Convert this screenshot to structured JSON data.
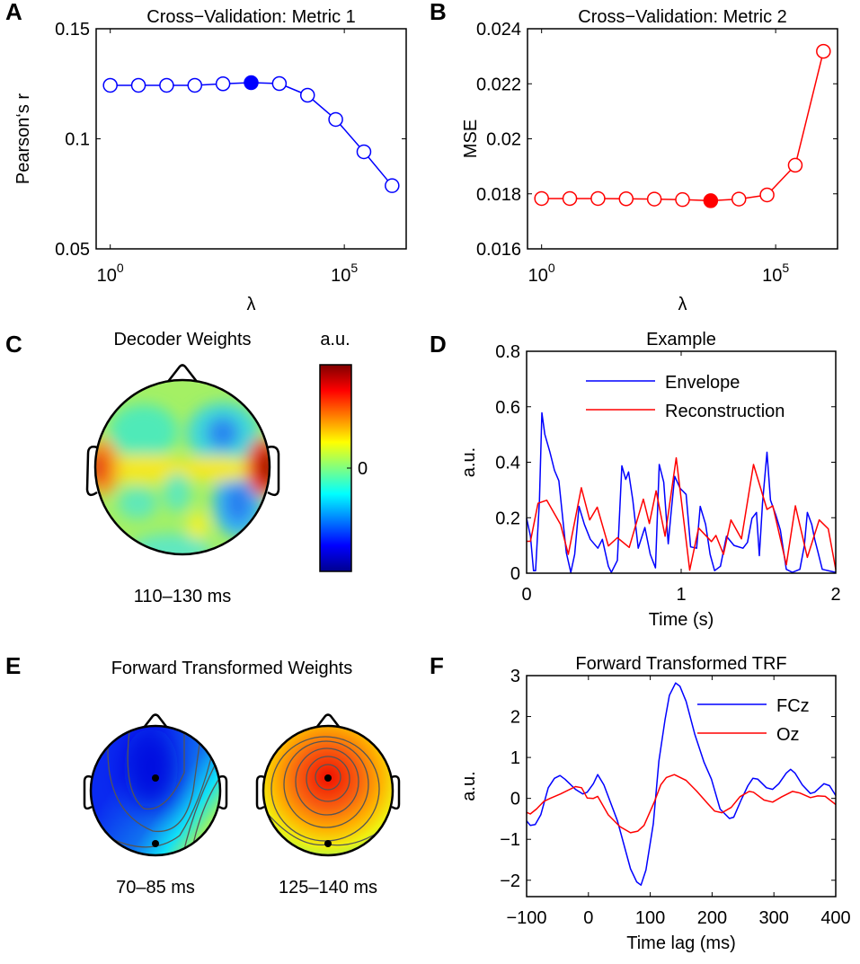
{
  "panels": {
    "A": {
      "letter": "A"
    },
    "B": {
      "letter": "B"
    },
    "C": {
      "letter": "C",
      "title": "Decoder Weights",
      "colorbar_label": "a.u.",
      "colorbar_tick": "0",
      "time_label": "110–130 ms",
      "colormap": "jet"
    },
    "D": {
      "letter": "D"
    },
    "E": {
      "letter": "E",
      "title": "Forward Transformed Weights",
      "time_labels": [
        "70–85 ms",
        "125–140 ms"
      ],
      "colormap": "jet"
    },
    "F": {
      "letter": "F"
    }
  },
  "chart_data": [
    {
      "id": "A",
      "type": "line",
      "title": "Cross−Validation: Metric 1",
      "xlabel": "λ",
      "ylabel": "Pearson‘s r",
      "xscale": "log",
      "xlim": [
        0.5,
        2097152
      ],
      "ylim": [
        0.05,
        0.15
      ],
      "xticks": [
        {
          "value": 1,
          "base": "10",
          "exp": "0"
        },
        {
          "value": 100000,
          "base": "10",
          "exp": "5"
        }
      ],
      "yticks": [
        {
          "value": 0.05,
          "label": "0.05"
        },
        {
          "value": 0.1,
          "label": "0.1"
        },
        {
          "value": 0.15,
          "label": "0.15"
        }
      ],
      "color": "#0000ff",
      "marker": "open-circle",
      "highlight_index": 5,
      "x": [
        1,
        4,
        16,
        64,
        256,
        1024,
        4096,
        16384,
        65536,
        262144,
        1048576
      ],
      "y": [
        0.1243,
        0.1243,
        0.1243,
        0.1243,
        0.125,
        0.1255,
        0.1251,
        0.1198,
        0.1088,
        0.0941,
        0.0787
      ],
      "grid": false
    },
    {
      "id": "B",
      "type": "line",
      "title": "Cross−Validation: Metric 2",
      "xlabel": "λ",
      "ylabel": "MSE",
      "xscale": "log",
      "xlim": [
        0.5,
        2097152
      ],
      "ylim": [
        0.016,
        0.024
      ],
      "xticks": [
        {
          "value": 1,
          "base": "10",
          "exp": "0"
        },
        {
          "value": 100000,
          "base": "10",
          "exp": "5"
        }
      ],
      "yticks": [
        {
          "value": 0.016,
          "label": "0.016"
        },
        {
          "value": 0.018,
          "label": "0.018"
        },
        {
          "value": 0.02,
          "label": "0.02"
        },
        {
          "value": 0.022,
          "label": "0.022"
        },
        {
          "value": 0.024,
          "label": "0.024"
        }
      ],
      "color": "#ff0000",
      "marker": "open-circle",
      "highlight_index": 6,
      "x": [
        1,
        4,
        16,
        64,
        256,
        1024,
        4096,
        16384,
        65536,
        262144,
        1048576
      ],
      "y": [
        0.01783,
        0.01783,
        0.01783,
        0.01782,
        0.01781,
        0.01779,
        0.01775,
        0.01781,
        0.01796,
        0.01904,
        0.02318
      ],
      "grid": false
    },
    {
      "id": "D",
      "type": "line",
      "title": "Example",
      "xlabel": "Time (s)",
      "ylabel": "a.u.",
      "xlim": [
        0,
        2
      ],
      "ylim": [
        0,
        0.8
      ],
      "xticks": [
        {
          "value": 0,
          "label": "0"
        },
        {
          "value": 1,
          "label": "1"
        },
        {
          "value": 2,
          "label": "2"
        }
      ],
      "yticks": [
        {
          "value": 0,
          "label": "0"
        },
        {
          "value": 0.2,
          "label": "0.2"
        },
        {
          "value": 0.4,
          "label": "0.4"
        },
        {
          "value": 0.6,
          "label": "0.6"
        },
        {
          "value": 0.8,
          "label": "0.8"
        }
      ],
      "legend": "top-right",
      "grid": false,
      "series": [
        {
          "name": "Envelope",
          "color": "#0000ff",
          "x": [
            0,
            0.025,
            0.045,
            0.058,
            0.083,
            0.099,
            0.118,
            0.151,
            0.18,
            0.209,
            0.238,
            0.257,
            0.286,
            0.311,
            0.339,
            0.374,
            0.412,
            0.461,
            0.49,
            0.529,
            0.548,
            0.587,
            0.616,
            0.641,
            0.66,
            0.687,
            0.722,
            0.765,
            0.8,
            0.834,
            0.858,
            0.887,
            0.916,
            0.935,
            0.958,
            0.993,
            1.032,
            1.061,
            1.1,
            1.123,
            1.158,
            1.187,
            1.216,
            1.254,
            1.293,
            1.342,
            1.4,
            1.429,
            1.458,
            1.487,
            1.506,
            1.526,
            1.555,
            1.578,
            1.613,
            1.642,
            1.68,
            1.719,
            1.768,
            1.797,
            1.816,
            1.845,
            1.864,
            1.884,
            1.913,
            2.0
          ],
          "y": [
            0.198,
            0.133,
            0.009,
            0.009,
            0.263,
            0.578,
            0.5,
            0.436,
            0.371,
            0.333,
            0.176,
            0.074,
            0.003,
            0.068,
            0.241,
            0.176,
            0.122,
            0.09,
            0.122,
            0.025,
            0.003,
            0.046,
            0.387,
            0.338,
            0.365,
            0.263,
            0.09,
            0.165,
            0.068,
            0.019,
            0.392,
            0.328,
            0.106,
            0.219,
            0.349,
            0.306,
            0.284,
            0.095,
            0.09,
            0.241,
            0.176,
            0.068,
            0.009,
            0.025,
            0.133,
            0.1,
            0.09,
            0.111,
            0.198,
            0.219,
            0.063,
            0.252,
            0.436,
            0.263,
            0.209,
            0.155,
            0.014,
            0.003,
            0.014,
            0.1,
            0.219,
            0.176,
            0.122,
            0.079,
            0.014,
            0.003
          ]
        },
        {
          "name": "Reconstruction",
          "color": "#ff0000",
          "x": [
            0,
            0.025,
            0.074,
            0.13,
            0.22,
            0.27,
            0.354,
            0.408,
            0.457,
            0.529,
            0.587,
            0.664,
            0.755,
            0.794,
            0.838,
            0.896,
            0.968,
            1.055,
            1.113,
            1.196,
            1.225,
            1.274,
            1.322,
            1.39,
            1.468,
            1.555,
            1.593,
            1.68,
            1.739,
            1.816,
            1.893,
            1.952,
            2.0
          ],
          "y": [
            0.115,
            0.115,
            0.252,
            0.263,
            0.176,
            0.068,
            0.308,
            0.192,
            0.238,
            0.098,
            0.128,
            0.093,
            0.267,
            0.179,
            0.297,
            0.133,
            0.416,
            0.011,
            0.163,
            0.114,
            0.136,
            0.068,
            0.192,
            0.124,
            0.392,
            0.23,
            0.243,
            0.03,
            0.243,
            0.057,
            0.192,
            0.16,
            0.014
          ]
        }
      ]
    },
    {
      "id": "F",
      "type": "line",
      "title": "Forward Transformed TRF",
      "xlabel": "Time lag (ms)",
      "ylabel": "a.u.",
      "xlim": [
        -100,
        400
      ],
      "ylim": [
        -2.4,
        3
      ],
      "xticks": [
        {
          "value": -100,
          "label": "−100"
        },
        {
          "value": 0,
          "label": "0"
        },
        {
          "value": 100,
          "label": "100"
        },
        {
          "value": 200,
          "label": "200"
        },
        {
          "value": 300,
          "label": "300"
        },
        {
          "value": 400,
          "label": "400"
        }
      ],
      "yticks": [
        {
          "value": -2,
          "label": "−2"
        },
        {
          "value": -1,
          "label": "−1"
        },
        {
          "value": 0,
          "label": "0"
        },
        {
          "value": 1,
          "label": "1"
        },
        {
          "value": 2,
          "label": "2"
        },
        {
          "value": 3,
          "label": "3"
        }
      ],
      "legend": "top-right",
      "grid": false,
      "series": [
        {
          "name": "FCz",
          "color": "#0000ff",
          "x": [
            -100,
            -94,
            -86,
            -77,
            -65,
            -55,
            -46,
            -38,
            -21,
            -9,
            -2,
            8,
            15,
            25,
            47,
            68,
            78,
            85,
            93,
            105,
            114,
            124,
            131,
            141,
            148,
            158,
            172,
            187,
            199,
            213,
            228,
            235,
            247,
            258,
            266,
            274,
            288,
            298,
            308,
            320,
            327,
            334,
            346,
            359,
            366,
            381,
            390,
            400
          ],
          "y": [
            -0.55,
            -0.66,
            -0.64,
            -0.4,
            0.26,
            0.49,
            0.56,
            0.47,
            0.22,
            0.11,
            0.15,
            0.36,
            0.58,
            0.33,
            -0.55,
            -1.72,
            -2.04,
            -2.12,
            -1.75,
            -0.62,
            0.91,
            1.93,
            2.52,
            2.82,
            2.74,
            2.37,
            1.57,
            0.88,
            0.47,
            -0.26,
            -0.49,
            -0.46,
            -0.04,
            0.31,
            0.49,
            0.47,
            0.26,
            0.22,
            0.36,
            0.62,
            0.71,
            0.62,
            0.33,
            0.12,
            0.15,
            0.36,
            0.31,
            0.07
          ]
        },
        {
          "name": "Oz",
          "color": "#ff0000",
          "x": [
            -100,
            -94,
            -84,
            -72,
            -62,
            -45,
            -21,
            -11,
            -2,
            8,
            15,
            32,
            51,
            68,
            80,
            90,
            107,
            117,
            126,
            139,
            158,
            175,
            192,
            204,
            216,
            231,
            245,
            260,
            267,
            284,
            298,
            313,
            330,
            342,
            359,
            371,
            383,
            400
          ],
          "y": [
            -0.34,
            -0.38,
            -0.26,
            -0.07,
            0.0,
            0.11,
            0.29,
            0.26,
            0.01,
            0.0,
            0.05,
            -0.4,
            -0.69,
            -0.84,
            -0.8,
            -0.66,
            -0.07,
            0.33,
            0.51,
            0.58,
            0.44,
            0.18,
            -0.11,
            -0.31,
            -0.35,
            -0.22,
            0.04,
            0.17,
            0.15,
            -0.04,
            -0.09,
            0.04,
            0.17,
            0.13,
            0.02,
            0.06,
            0.05,
            -0.15
          ]
        }
      ]
    }
  ]
}
